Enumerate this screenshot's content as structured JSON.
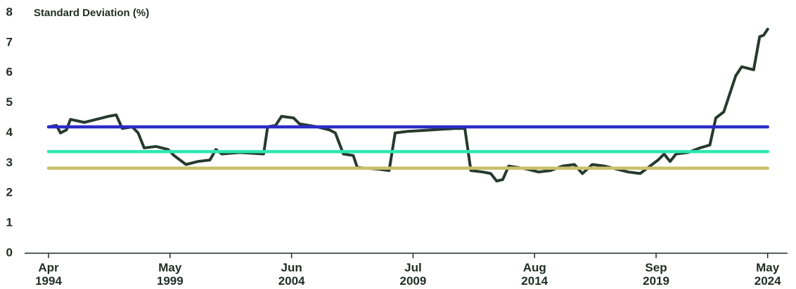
{
  "chart_data": {
    "type": "line",
    "ylabel": "Standard Deviation (%)",
    "xlim": [
      "1993-04",
      "2025-03"
    ],
    "ylim": [
      0,
      8
    ],
    "yticks": [
      0,
      1,
      2,
      3,
      4,
      5,
      6,
      7,
      8
    ],
    "xticks": [
      {
        "value": "1994-04",
        "label": [
          "Apr",
          "1994"
        ]
      },
      {
        "value": "1999-05",
        "label": [
          "May",
          "1999"
        ]
      },
      {
        "value": "2004-06",
        "label": [
          "Jun",
          "2004"
        ]
      },
      {
        "value": "2009-07",
        "label": [
          "Jul",
          "2009"
        ]
      },
      {
        "value": "2014-08",
        "label": [
          "Aug",
          "2014"
        ]
      },
      {
        "value": "2019-09",
        "label": [
          "Sep",
          "2019"
        ]
      },
      {
        "value": "2024-05",
        "label": [
          "May",
          "2024"
        ]
      }
    ],
    "series": [
      {
        "color": "#263a2e",
        "x": [
          "1994-04",
          "1994-08",
          "1994-10",
          "1995-01",
          "1995-03",
          "1995-10",
          "1996-04",
          "1996-10",
          "1997-02",
          "1997-05",
          "1997-10",
          "1998-01",
          "1998-04",
          "1998-10",
          "1999-04",
          "1999-07",
          "2000-01",
          "2000-07",
          "2001-01",
          "2001-04",
          "2001-07",
          "2002-04",
          "2003-04",
          "2003-06",
          "2003-10",
          "2004-01",
          "2004-07",
          "2004-10",
          "2005-07",
          "2006-01",
          "2006-04",
          "2006-08",
          "2007-01",
          "2007-03",
          "2008-01",
          "2008-07",
          "2008-10",
          "2009-04",
          "2010-04",
          "2011-04",
          "2011-09",
          "2011-12",
          "2012-06",
          "2012-10",
          "2013-01",
          "2013-04",
          "2013-07",
          "2014-04",
          "2014-10",
          "2015-04",
          "2015-10",
          "2016-04",
          "2016-08",
          "2017-01",
          "2017-07",
          "2018-01",
          "2018-07",
          "2019-01",
          "2019-06",
          "2019-10",
          "2020-01",
          "2020-04",
          "2020-07",
          "2021-01",
          "2021-07",
          "2021-12",
          "2022-03",
          "2022-07",
          "2022-10",
          "2023-01",
          "2023-04",
          "2023-10",
          "2024-01",
          "2024-03",
          "2024-05"
        ],
        "values": [
          4.2,
          4.25,
          4.0,
          4.1,
          4.45,
          4.35,
          4.45,
          4.55,
          4.6,
          4.15,
          4.2,
          4.0,
          3.5,
          3.55,
          3.45,
          3.25,
          2.95,
          3.05,
          3.1,
          3.45,
          3.3,
          3.35,
          3.3,
          4.2,
          4.25,
          4.55,
          4.5,
          4.3,
          4.2,
          4.1,
          4.0,
          3.3,
          3.25,
          2.85,
          2.8,
          2.75,
          4.0,
          4.05,
          4.1,
          4.15,
          4.15,
          2.75,
          2.7,
          2.65,
          2.4,
          2.45,
          2.9,
          2.8,
          2.7,
          2.75,
          2.9,
          2.95,
          2.65,
          2.95,
          2.9,
          2.8,
          2.7,
          2.65,
          2.9,
          3.1,
          3.3,
          3.05,
          3.3,
          3.35,
          3.5,
          3.6,
          4.5,
          4.7,
          5.3,
          5.9,
          6.2,
          6.1,
          7.2,
          7.25,
          7.45
        ]
      },
      {
        "color": "#2b2bc9",
        "x": [
          "1994-04",
          "2024-05"
        ],
        "values": [
          4.2,
          4.2
        ]
      },
      {
        "color": "#2de8b0",
        "x": [
          "1994-04",
          "2024-05"
        ],
        "values": [
          3.38,
          3.38
        ]
      },
      {
        "color": "#c9c06a",
        "x": [
          "1994-04",
          "2024-05"
        ],
        "values": [
          2.83,
          2.83
        ]
      }
    ]
  }
}
